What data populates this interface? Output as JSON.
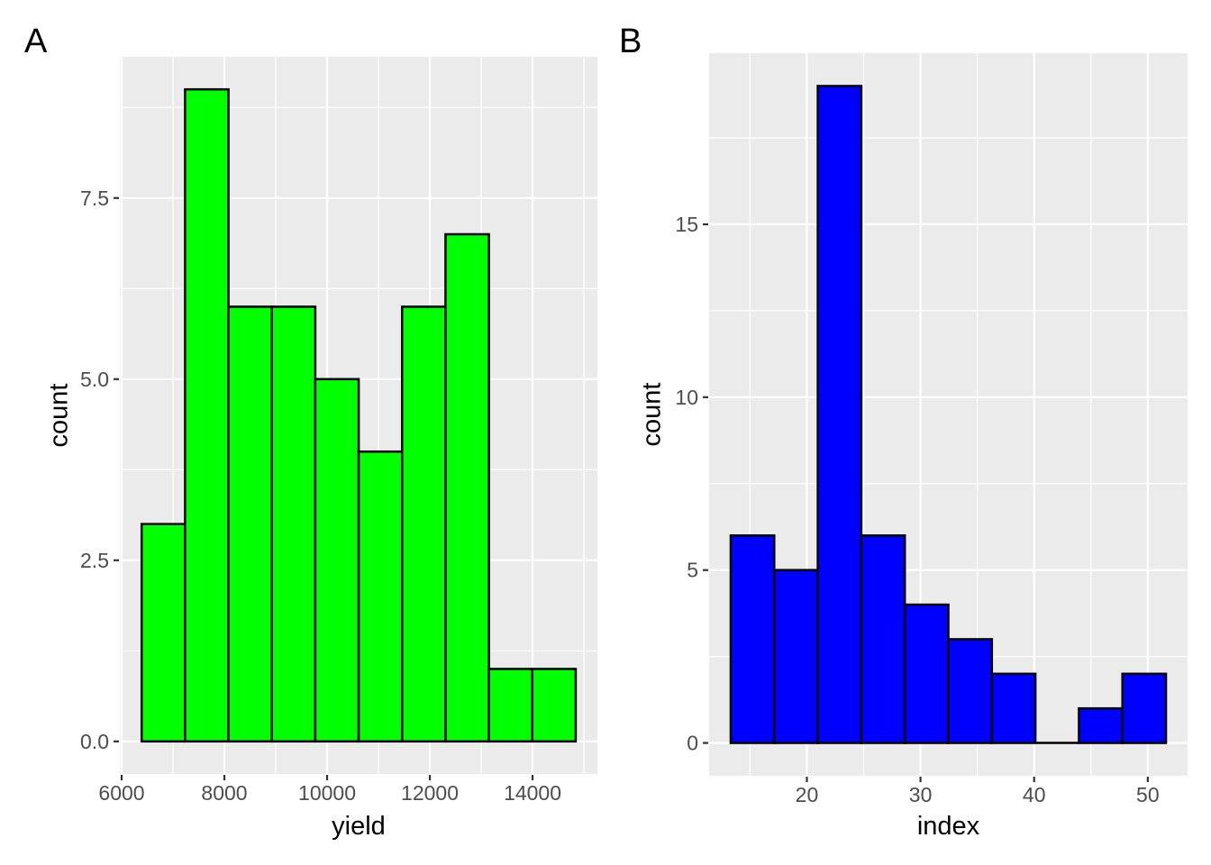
{
  "figure": {
    "background": "#FFFFFF",
    "panel_background": "#EBEBEB",
    "grid_color": "#FFFFFF",
    "tick_mark_color": "#333333",
    "axis_text_color": "#4D4D4D",
    "axis_title_color": "#000000",
    "tag_color": "#000000"
  },
  "chart_data": [
    {
      "type": "bar",
      "subtype": "histogram",
      "tag": "A",
      "title": "",
      "xlabel": "yield",
      "ylabel": "count",
      "legend": "none",
      "grid": true,
      "bar_fill": "#00FF00",
      "bar_stroke": "#000000",
      "bin_edges": [
        6390,
        7235,
        8080,
        8925,
        9770,
        10615,
        11460,
        12305,
        13150,
        13995,
        14840
      ],
      "counts": [
        3,
        9,
        6,
        6,
        5,
        4,
        6,
        7,
        1,
        1
      ],
      "xlim": [
        5965,
        15262
      ],
      "ylim": [
        -0.45,
        9.45
      ],
      "x_ticks": {
        "values": [
          6000,
          8000,
          10000,
          12000,
          14000
        ],
        "labels": [
          "6000",
          "8000",
          "10000",
          "12000",
          "14000"
        ]
      },
      "y_ticks": {
        "values": [
          0,
          2.5,
          5,
          7.5
        ],
        "labels": [
          "0.0",
          "2.5",
          "5.0",
          "7.5"
        ]
      },
      "x_minor": [
        7000,
        9000,
        11000,
        13000,
        15000
      ],
      "y_minor": [
        1.25,
        3.75,
        6.25,
        8.75
      ]
    },
    {
      "type": "bar",
      "subtype": "histogram",
      "tag": "B",
      "title": "",
      "xlabel": "index",
      "ylabel": "count",
      "legend": "none",
      "grid": true,
      "bar_fill": "#0000FF",
      "bar_stroke": "#000000",
      "bin_edges": [
        13.3,
        17.13,
        20.96,
        24.79,
        28.62,
        32.45,
        36.28,
        40.11,
        43.94,
        47.77,
        51.6
      ],
      "counts": [
        6,
        5,
        19,
        6,
        4,
        3,
        2,
        0,
        1,
        2
      ],
      "xlim": [
        11.4,
        53.5
      ],
      "ylim": [
        -0.95,
        19.95
      ],
      "x_ticks": {
        "values": [
          20,
          30,
          40,
          50
        ],
        "labels": [
          "20",
          "30",
          "40",
          "50"
        ]
      },
      "y_ticks": {
        "values": [
          0,
          5,
          10,
          15
        ],
        "labels": [
          "0",
          "5",
          "10",
          "15"
        ]
      },
      "x_minor": [
        15,
        25,
        35,
        45
      ],
      "y_minor": [
        2.5,
        7.5,
        12.5,
        17.5
      ]
    }
  ]
}
